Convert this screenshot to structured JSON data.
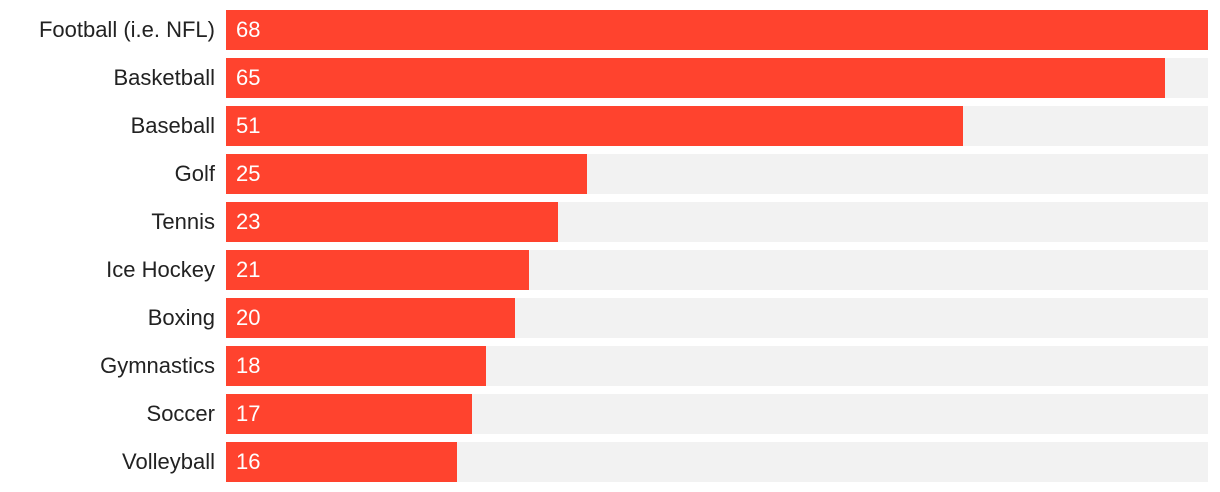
{
  "chart_data": {
    "type": "bar",
    "orientation": "horizontal",
    "categories": [
      "Football (i.e. NFL)",
      "Basketball",
      "Baseball",
      "Golf",
      "Tennis",
      "Ice Hockey",
      "Boxing",
      "Gymnastics",
      "Soccer",
      "Volleyball"
    ],
    "values": [
      68,
      65,
      51,
      25,
      23,
      21,
      20,
      18,
      17,
      16
    ],
    "xlim": [
      0,
      68
    ],
    "grid": false,
    "legend": "none",
    "colors": {
      "bar": "#ff432e",
      "track": "#f2f2f2"
    }
  }
}
